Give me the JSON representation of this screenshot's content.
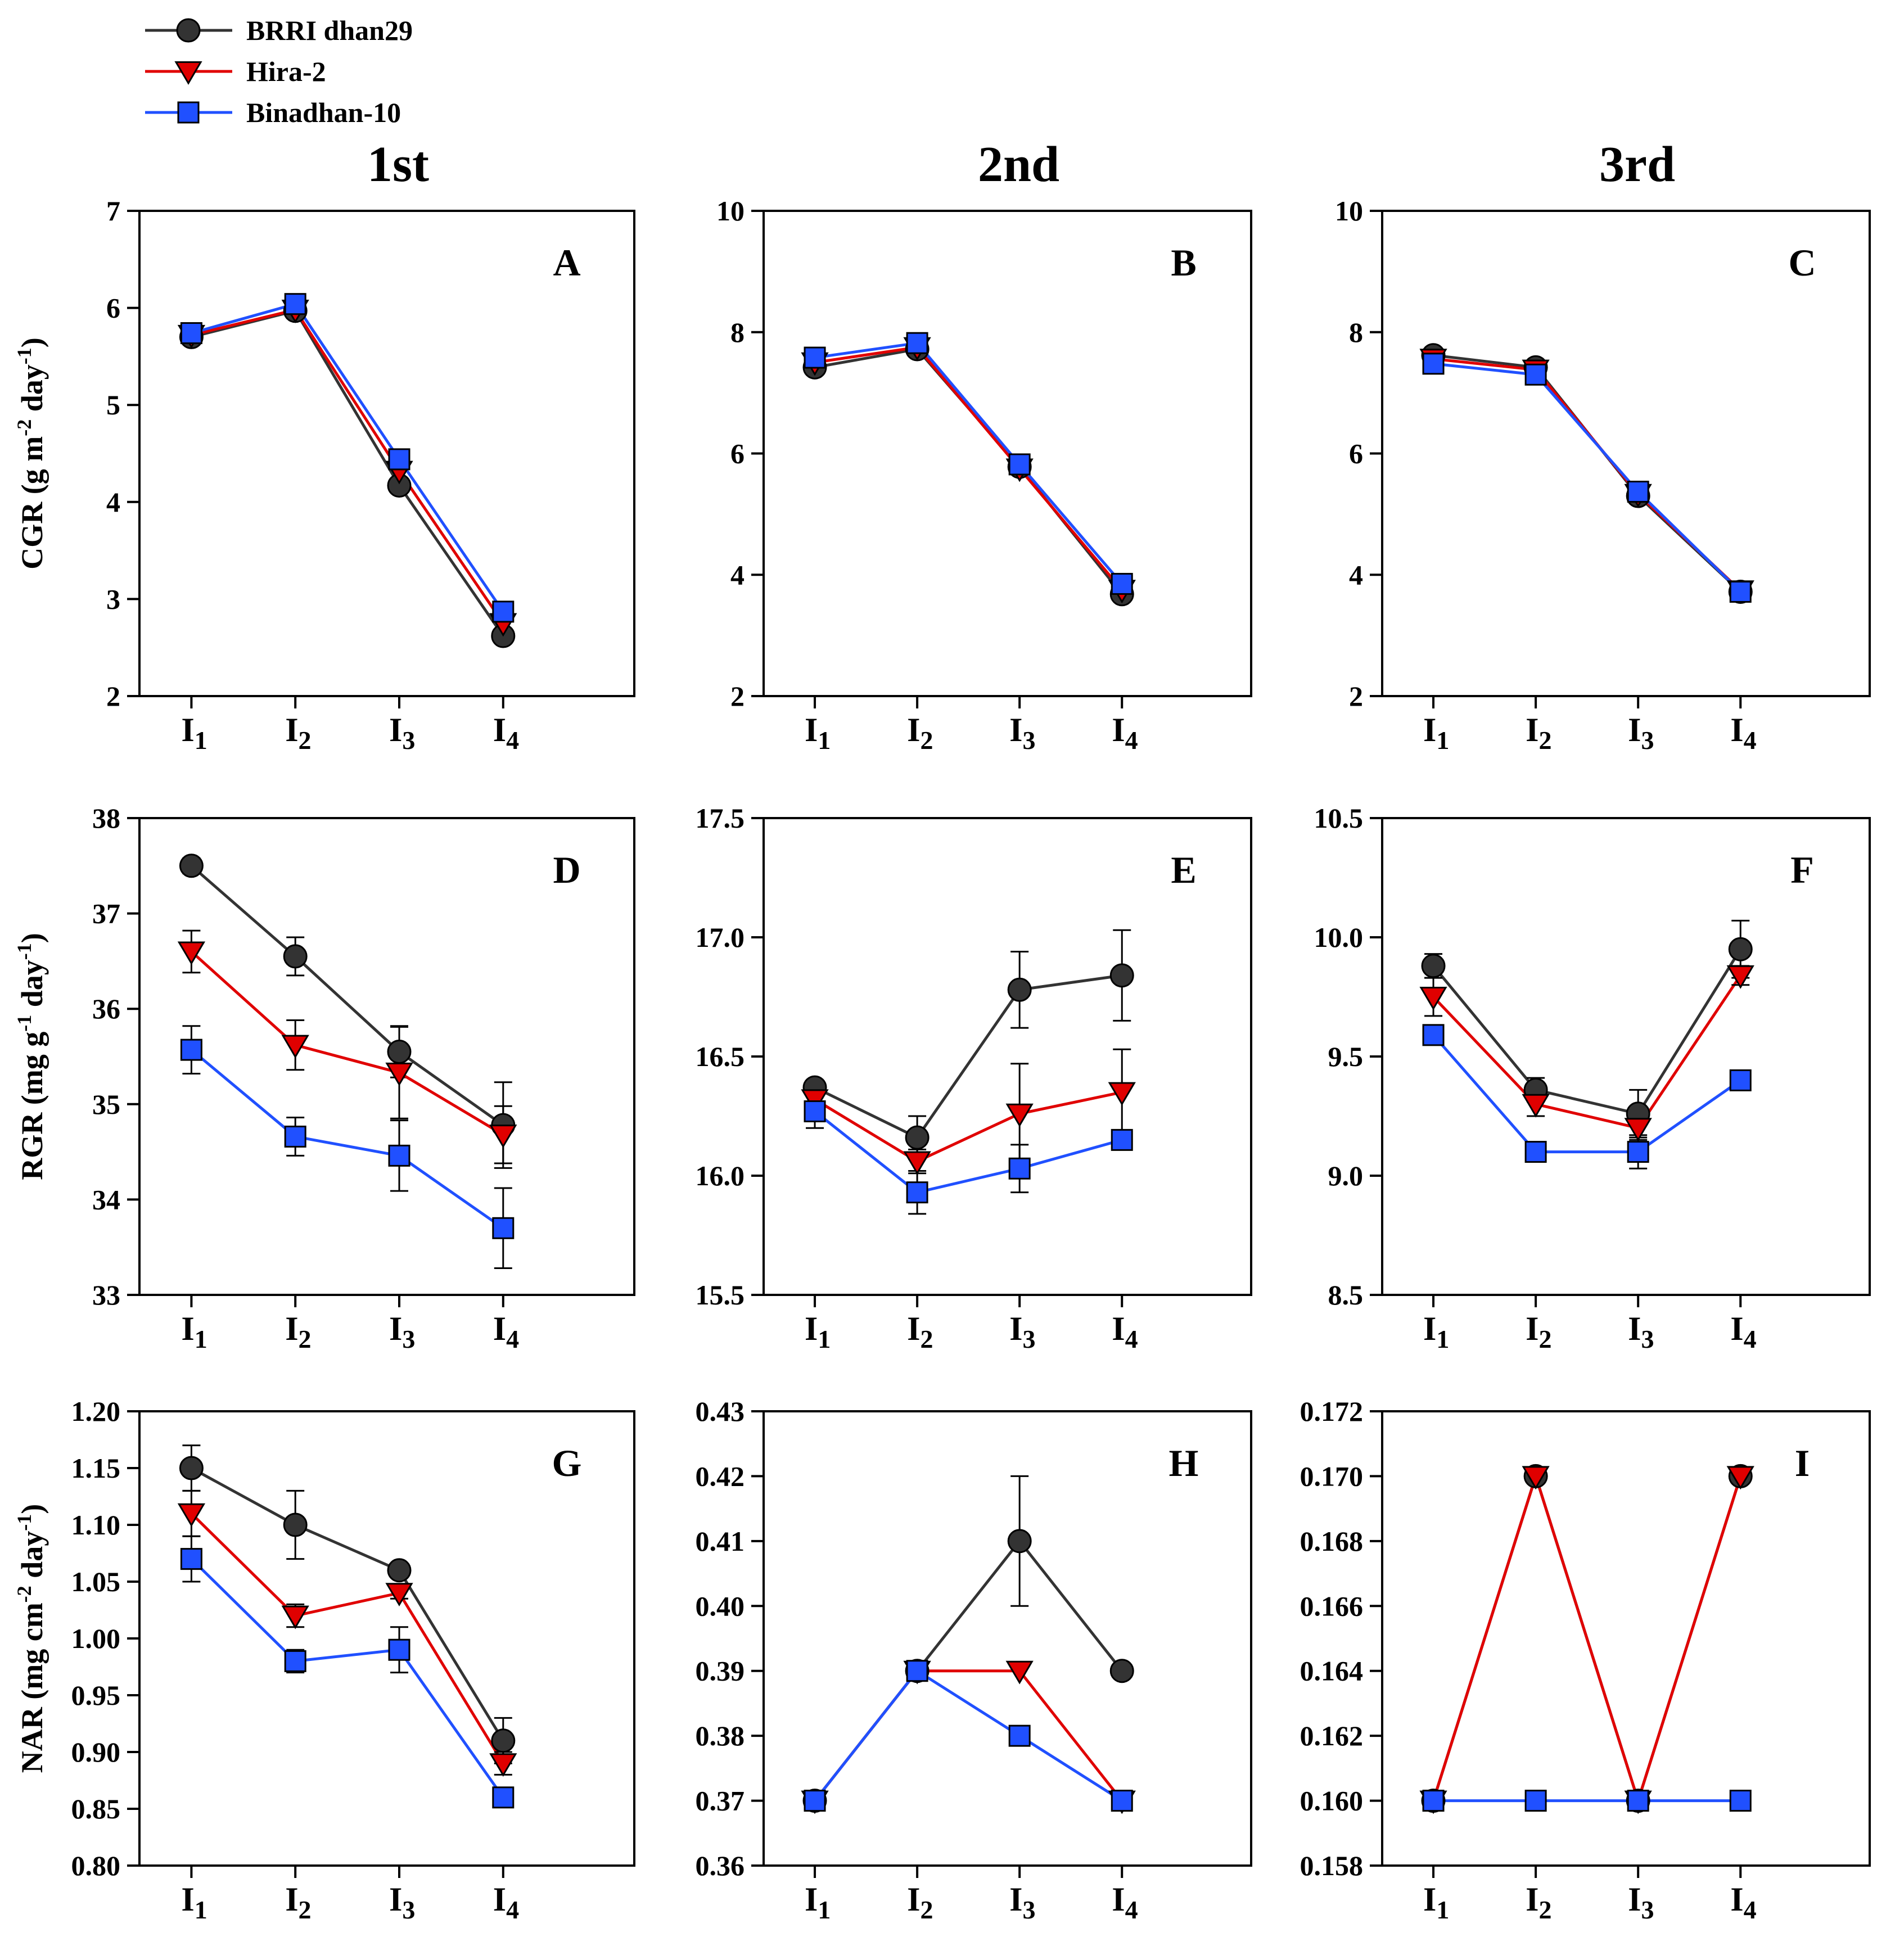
{
  "legend": [
    {
      "name": "BRRI dhan29",
      "marker": "circle",
      "color": "#333333"
    },
    {
      "name": "Hira-2",
      "marker": "triangle-down",
      "color": "#e00000"
    },
    {
      "name": "Binadhan-10",
      "marker": "square",
      "color": "#2050ff"
    }
  ],
  "column_titles": [
    "1st",
    "2nd",
    "3rd"
  ],
  "row_ylabels": [
    {
      "main": "CGR (g m",
      "sup1": "-2",
      "mid": " day",
      "sup2": "-1",
      "end": ")"
    },
    {
      "main": "RGR (mg g",
      "sup1": "-1",
      "mid": " day",
      "sup2": "-1",
      "end": ")"
    },
    {
      "main": "NAR (mg cm",
      "sup1": "-2",
      "mid": " day",
      "sup2": "-1",
      "end": ")"
    }
  ],
  "colors": {
    "brri": "#333333",
    "hira": "#e00000",
    "bina": "#2050ff",
    "axis": "#000000"
  },
  "chart_data": [
    {
      "type": "line",
      "panel": "A",
      "title": "1st",
      "categories": [
        {
          "base": "I",
          "sub": "1"
        },
        {
          "base": "I",
          "sub": "2"
        },
        {
          "base": "I",
          "sub": "3"
        },
        {
          "base": "I",
          "sub": "4"
        }
      ],
      "ylim": [
        2,
        7
      ],
      "yticks": [
        2,
        3,
        4,
        5,
        6,
        7
      ],
      "ytick_labels": [
        "2",
        "3",
        "4",
        "5",
        "6",
        "7"
      ],
      "series": [
        {
          "name": "BRRI dhan29",
          "values": [
            5.7,
            5.97,
            4.17,
            2.62
          ],
          "err": [
            0,
            0,
            0,
            0
          ]
        },
        {
          "name": "Hira-2",
          "values": [
            5.72,
            5.98,
            4.32,
            2.75
          ],
          "err": [
            0,
            0,
            0,
            0
          ]
        },
        {
          "name": "Binadhan-10",
          "values": [
            5.74,
            6.04,
            4.44,
            2.87
          ],
          "err": [
            0,
            0,
            0,
            0
          ]
        }
      ]
    },
    {
      "type": "line",
      "panel": "B",
      "title": "2nd",
      "categories": [
        {
          "base": "I",
          "sub": "1"
        },
        {
          "base": "I",
          "sub": "2"
        },
        {
          "base": "I",
          "sub": "3"
        },
        {
          "base": "I",
          "sub": "4"
        }
      ],
      "ylim": [
        2,
        10
      ],
      "yticks": [
        2,
        4,
        6,
        8,
        10
      ],
      "ytick_labels": [
        "2",
        "4",
        "6",
        "8",
        "10"
      ],
      "series": [
        {
          "name": "BRRI dhan29",
          "values": [
            7.42,
            7.72,
            5.78,
            3.68
          ],
          "err": [
            0,
            0,
            0,
            0
          ]
        },
        {
          "name": "Hira-2",
          "values": [
            7.5,
            7.75,
            5.75,
            3.75
          ],
          "err": [
            0,
            0,
            0,
            0
          ]
        },
        {
          "name": "Binadhan-10",
          "values": [
            7.58,
            7.82,
            5.82,
            3.85
          ],
          "err": [
            0,
            0,
            0,
            0
          ]
        }
      ]
    },
    {
      "type": "line",
      "panel": "C",
      "title": "3rd",
      "categories": [
        {
          "base": "I",
          "sub": "1"
        },
        {
          "base": "I",
          "sub": "2"
        },
        {
          "base": "I",
          "sub": "3"
        },
        {
          "base": "I",
          "sub": "4"
        }
      ],
      "ylim": [
        2,
        10
      ],
      "yticks": [
        2,
        4,
        6,
        8,
        10
      ],
      "ytick_labels": [
        "2",
        "4",
        "6",
        "8",
        "10"
      ],
      "series": [
        {
          "name": "BRRI dhan29",
          "values": [
            7.62,
            7.42,
            5.3,
            3.72
          ],
          "err": [
            0,
            0,
            0,
            0
          ]
        },
        {
          "name": "Hira-2",
          "values": [
            7.56,
            7.38,
            5.33,
            3.74
          ],
          "err": [
            0,
            0,
            0,
            0
          ]
        },
        {
          "name": "Binadhan-10",
          "values": [
            7.48,
            7.3,
            5.37,
            3.72
          ],
          "err": [
            0,
            0,
            0,
            0
          ]
        }
      ]
    },
    {
      "type": "line",
      "panel": "D",
      "title": "",
      "categories": [
        {
          "base": "I",
          "sub": "1"
        },
        {
          "base": "I",
          "sub": "2"
        },
        {
          "base": "I",
          "sub": "3"
        },
        {
          "base": "I",
          "sub": "4"
        }
      ],
      "ylim": [
        33,
        38
      ],
      "yticks": [
        33,
        34,
        35,
        36,
        37,
        38
      ],
      "ytick_labels": [
        "33",
        "34",
        "35",
        "36",
        "37",
        "38"
      ],
      "series": [
        {
          "name": "BRRI dhan29",
          "values": [
            37.5,
            36.55,
            35.55,
            34.78
          ],
          "err": [
            0.08,
            0.2,
            0.27,
            0.45
          ]
        },
        {
          "name": "Hira-2",
          "values": [
            36.6,
            35.62,
            35.33,
            34.68
          ],
          "err": [
            0.22,
            0.26,
            0.48,
            0.3
          ]
        },
        {
          "name": "Binadhan-10",
          "values": [
            35.57,
            34.66,
            34.46,
            33.7
          ],
          "err": [
            0.25,
            0.2,
            0.37,
            0.42
          ]
        }
      ]
    },
    {
      "type": "line",
      "panel": "E",
      "title": "",
      "categories": [
        {
          "base": "I",
          "sub": "1"
        },
        {
          "base": "I",
          "sub": "2"
        },
        {
          "base": "I",
          "sub": "3"
        },
        {
          "base": "I",
          "sub": "4"
        }
      ],
      "ylim": [
        15.5,
        17.5
      ],
      "yticks": [
        15.5,
        16.0,
        16.5,
        17.0,
        17.5
      ],
      "ytick_labels": [
        "15.5",
        "16.0",
        "16.5",
        "17.0",
        "17.5"
      ],
      "series": [
        {
          "name": "BRRI dhan29",
          "values": [
            16.37,
            16.16,
            16.78,
            16.84
          ],
          "err": [
            0.03,
            0.09,
            0.16,
            0.19
          ]
        },
        {
          "name": "Hira-2",
          "values": [
            16.32,
            16.06,
            16.26,
            16.35
          ],
          "err": [
            0.05,
            0.05,
            0.21,
            0.18
          ]
        },
        {
          "name": "Binadhan-10",
          "values": [
            16.27,
            15.93,
            16.03,
            16.15
          ],
          "err": [
            0.07,
            0.09,
            0.1,
            0.04
          ]
        }
      ]
    },
    {
      "type": "line",
      "panel": "F",
      "title": "",
      "categories": [
        {
          "base": "I",
          "sub": "1"
        },
        {
          "base": "I",
          "sub": "2"
        },
        {
          "base": "I",
          "sub": "3"
        },
        {
          "base": "I",
          "sub": "4"
        }
      ],
      "ylim": [
        8.5,
        10.5
      ],
      "yticks": [
        8.5,
        9.0,
        9.5,
        10.0,
        10.5
      ],
      "ytick_labels": [
        "8.5",
        "9.0",
        "9.5",
        "10.0",
        "10.5"
      ],
      "series": [
        {
          "name": "BRRI dhan29",
          "values": [
            9.88,
            9.36,
            9.26,
            9.95
          ],
          "err": [
            0.05,
            0.05,
            0.1,
            0.12
          ]
        },
        {
          "name": "Hira-2",
          "values": [
            9.75,
            9.3,
            9.2,
            9.84
          ],
          "err": [
            0.08,
            0.05,
            0.05,
            0.04
          ]
        },
        {
          "name": "Binadhan-10",
          "values": [
            9.59,
            9.1,
            9.1,
            9.4
          ],
          "err": [
            0.02,
            0.02,
            0.07,
            0.01
          ]
        }
      ]
    },
    {
      "type": "line",
      "panel": "G",
      "title": "",
      "categories": [
        {
          "base": "I",
          "sub": "1"
        },
        {
          "base": "I",
          "sub": "2"
        },
        {
          "base": "I",
          "sub": "3"
        },
        {
          "base": "I",
          "sub": "4"
        }
      ],
      "ylim": [
        0.8,
        1.2
      ],
      "yticks": [
        0.8,
        0.85,
        0.9,
        0.95,
        1.0,
        1.05,
        1.1,
        1.15,
        1.2
      ],
      "ytick_labels": [
        "0.80",
        "0.85",
        "0.90",
        "0.95",
        "1.00",
        "1.05",
        "1.10",
        "1.15",
        "1.20"
      ],
      "series": [
        {
          "name": "BRRI dhan29",
          "values": [
            1.15,
            1.1,
            1.06,
            0.91
          ],
          "err": [
            0.02,
            0.03,
            0.005,
            0.02
          ]
        },
        {
          "name": "Hira-2",
          "values": [
            1.11,
            1.02,
            1.04,
            0.89
          ],
          "err": [
            0.02,
            0.01,
            0.005,
            0.01
          ]
        },
        {
          "name": "Binadhan-10",
          "values": [
            1.07,
            0.98,
            0.99,
            0.86
          ],
          "err": [
            0.02,
            0.01,
            0.02,
            0.0
          ]
        }
      ]
    },
    {
      "type": "line",
      "panel": "H",
      "title": "",
      "categories": [
        {
          "base": "I",
          "sub": "1"
        },
        {
          "base": "I",
          "sub": "2"
        },
        {
          "base": "I",
          "sub": "3"
        },
        {
          "base": "I",
          "sub": "4"
        }
      ],
      "ylim": [
        0.36,
        0.43
      ],
      "yticks": [
        0.36,
        0.37,
        0.38,
        0.39,
        0.4,
        0.41,
        0.42,
        0.43
      ],
      "ytick_labels": [
        "0.36",
        "0.37",
        "0.38",
        "0.39",
        "0.40",
        "0.41",
        "0.42",
        "0.43"
      ],
      "series": [
        {
          "name": "BRRI dhan29",
          "values": [
            0.37,
            0.39,
            0.41,
            0.39
          ],
          "err": [
            0,
            0,
            0.01,
            0
          ]
        },
        {
          "name": "Hira-2",
          "values": [
            0.37,
            0.39,
            0.39,
            0.37
          ],
          "err": [
            0,
            0,
            0,
            0
          ]
        },
        {
          "name": "Binadhan-10",
          "values": [
            0.37,
            0.39,
            0.38,
            0.37
          ],
          "err": [
            0,
            0,
            0,
            0
          ]
        }
      ]
    },
    {
      "type": "line",
      "panel": "I",
      "title": "",
      "categories": [
        {
          "base": "I",
          "sub": "1"
        },
        {
          "base": "I",
          "sub": "2"
        },
        {
          "base": "I",
          "sub": "3"
        },
        {
          "base": "I",
          "sub": "4"
        }
      ],
      "ylim": [
        0.158,
        0.172
      ],
      "yticks": [
        0.158,
        0.16,
        0.162,
        0.164,
        0.166,
        0.168,
        0.17,
        0.172
      ],
      "ytick_labels": [
        "0.158",
        "0.160",
        "0.162",
        "0.164",
        "0.166",
        "0.168",
        "0.170",
        "0.172"
      ],
      "series": [
        {
          "name": "BRRI dhan29",
          "values": [
            0.16,
            0.17,
            0.16,
            0.17
          ],
          "err": [
            0,
            0,
            0,
            0
          ]
        },
        {
          "name": "Hira-2",
          "values": [
            0.16,
            0.17,
            0.16,
            0.17
          ],
          "err": [
            0,
            0,
            0,
            0
          ]
        },
        {
          "name": "Binadhan-10",
          "values": [
            0.16,
            0.16,
            0.16,
            0.16
          ],
          "err": [
            0,
            0,
            0,
            0
          ]
        }
      ]
    }
  ]
}
